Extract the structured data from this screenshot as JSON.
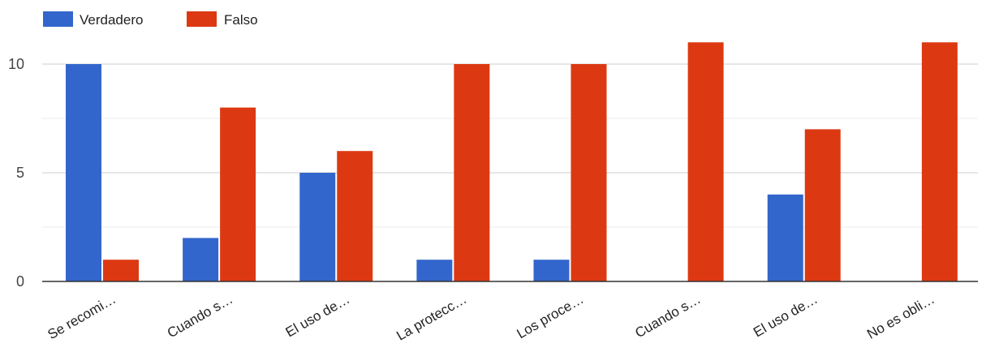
{
  "chart_data": {
    "type": "bar",
    "categories": [
      "Se recomi…",
      "Cuando s…",
      "El uso de…",
      "La protecc…",
      "Los proce…",
      "Cuando s…",
      "El uso de…",
      "No es obli…"
    ],
    "series": [
      {
        "name": "Verdadero",
        "color": "#3366cc",
        "values": [
          10,
          2,
          5,
          1,
          1,
          0,
          4,
          0
        ]
      },
      {
        "name": "Falso",
        "color": "#dc3912",
        "values": [
          1,
          8,
          6,
          10,
          10,
          11,
          7,
          11
        ]
      }
    ],
    "yticks": [
      "0",
      "5",
      "10"
    ],
    "ylim": [
      0,
      12
    ],
    "grid": true,
    "legend_position": "top-left"
  }
}
